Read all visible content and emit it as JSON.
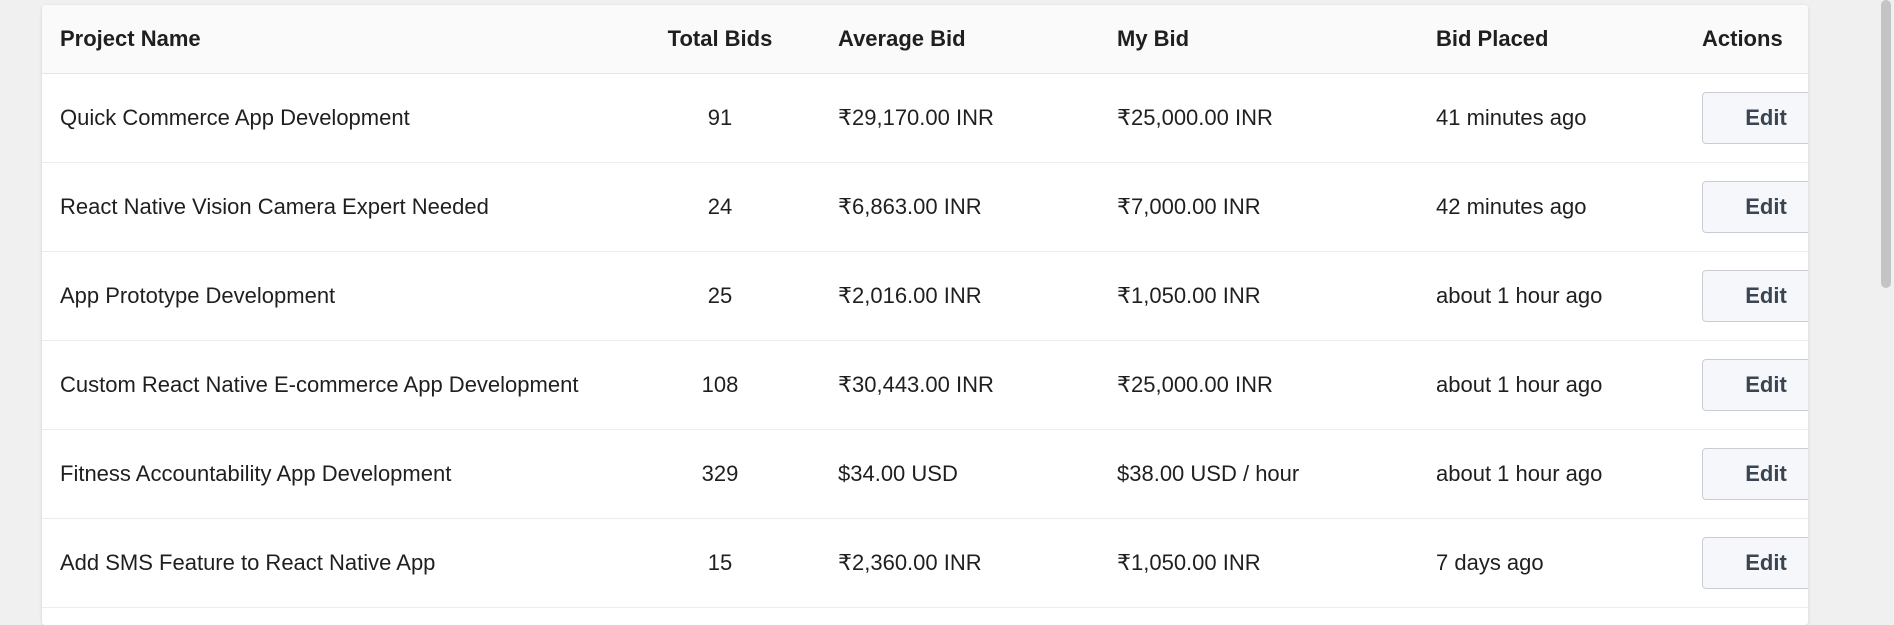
{
  "table": {
    "headers": {
      "project_name": "Project Name",
      "total_bids": "Total Bids",
      "average_bid": "Average Bid",
      "my_bid": "My Bid",
      "bid_placed": "Bid Placed",
      "actions": "Actions"
    },
    "rows": [
      {
        "project": "Quick Commerce App Development",
        "total_bids": "91",
        "average_bid": "₹29,170.00 INR",
        "my_bid": "₹25,000.00 INR",
        "placed": "41 minutes ago",
        "edit_label": "Edit"
      },
      {
        "project": "React Native Vision Camera Expert Needed",
        "total_bids": "24",
        "average_bid": "₹6,863.00 INR",
        "my_bid": "₹7,000.00 INR",
        "placed": "42 minutes ago",
        "edit_label": "Edit"
      },
      {
        "project": "App Prototype Development",
        "total_bids": "25",
        "average_bid": "₹2,016.00 INR",
        "my_bid": "₹1,050.00 INR",
        "placed": "about 1 hour ago",
        "edit_label": "Edit"
      },
      {
        "project": "Custom React Native E-commerce App Development",
        "total_bids": "108",
        "average_bid": "₹30,443.00 INR",
        "my_bid": "₹25,000.00 INR",
        "placed": "about 1 hour ago",
        "edit_label": "Edit"
      },
      {
        "project": "Fitness Accountability App Development",
        "total_bids": "329",
        "average_bid": "$34.00 USD",
        "my_bid": "$38.00 USD / hour",
        "placed": "about 1 hour ago",
        "edit_label": "Edit"
      },
      {
        "project": "Add SMS Feature to React Native App",
        "total_bids": "15",
        "average_bid": "₹2,360.00 INR",
        "my_bid": "₹1,050.00 INR",
        "placed": "7 days ago",
        "edit_label": "Edit"
      }
    ]
  },
  "icons": {
    "dropdown": "chevron-down-icon"
  },
  "colors": {
    "edit_text": "#3a4551",
    "button_bg": "#f5f7fa",
    "button_border": "#c9cdd3"
  }
}
